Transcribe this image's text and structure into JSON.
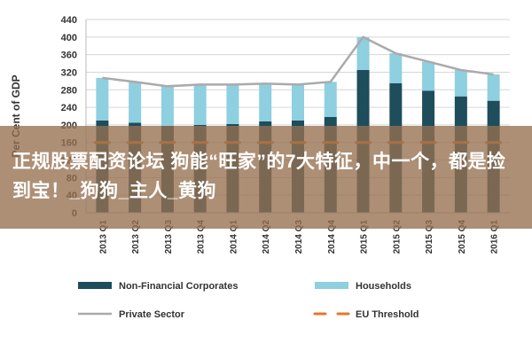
{
  "chart_data": {
    "type": "bar",
    "stacked": true,
    "title": "",
    "xlabel": "",
    "ylabel": "Per Cent of GDP",
    "ylim": [
      0,
      440
    ],
    "yticks": [
      0,
      40,
      80,
      120,
      160,
      200,
      240,
      280,
      320,
      360,
      400,
      440
    ],
    "categories": [
      "2013 Q1",
      "2013 Q2",
      "2013 Q3",
      "2013 Q4",
      "2014 Q1",
      "2014 Q2",
      "2014 Q3",
      "2014 Q4",
      "2015 Q1",
      "2015 Q2",
      "2015 Q3",
      "2015 Q4",
      "2016 Q1"
    ],
    "series": [
      {
        "name": "Non-Financial Corporates",
        "kind": "bar",
        "color": "#1e4d5c",
        "values": [
          210,
          205,
          198,
          200,
          202,
          208,
          210,
          218,
          325,
          295,
          278,
          265,
          255
        ]
      },
      {
        "name": "Households",
        "kind": "bar",
        "color": "#8ecfe0",
        "values": [
          97,
          93,
          90,
          92,
          90,
          86,
          82,
          80,
          75,
          68,
          66,
          60,
          60
        ]
      },
      {
        "name": "Private Sector",
        "kind": "line",
        "color": "#aaaaaa",
        "values": [
          307,
          298,
          288,
          292,
          292,
          294,
          292,
          298,
          400,
          363,
          344,
          325,
          315
        ]
      },
      {
        "name": "EU Threshold",
        "kind": "dashed-line",
        "color": "#e8762b",
        "values": [
          160,
          160,
          160,
          160,
          160,
          160,
          160,
          160,
          160,
          160,
          160,
          160,
          160
        ]
      }
    ],
    "legend_position": "bottom"
  },
  "overlay": {
    "text": "正规股票配资论坛 狗能“旺家”的7大特征，中一个，都是捡到宝！_狗狗_主人_黄狗"
  }
}
